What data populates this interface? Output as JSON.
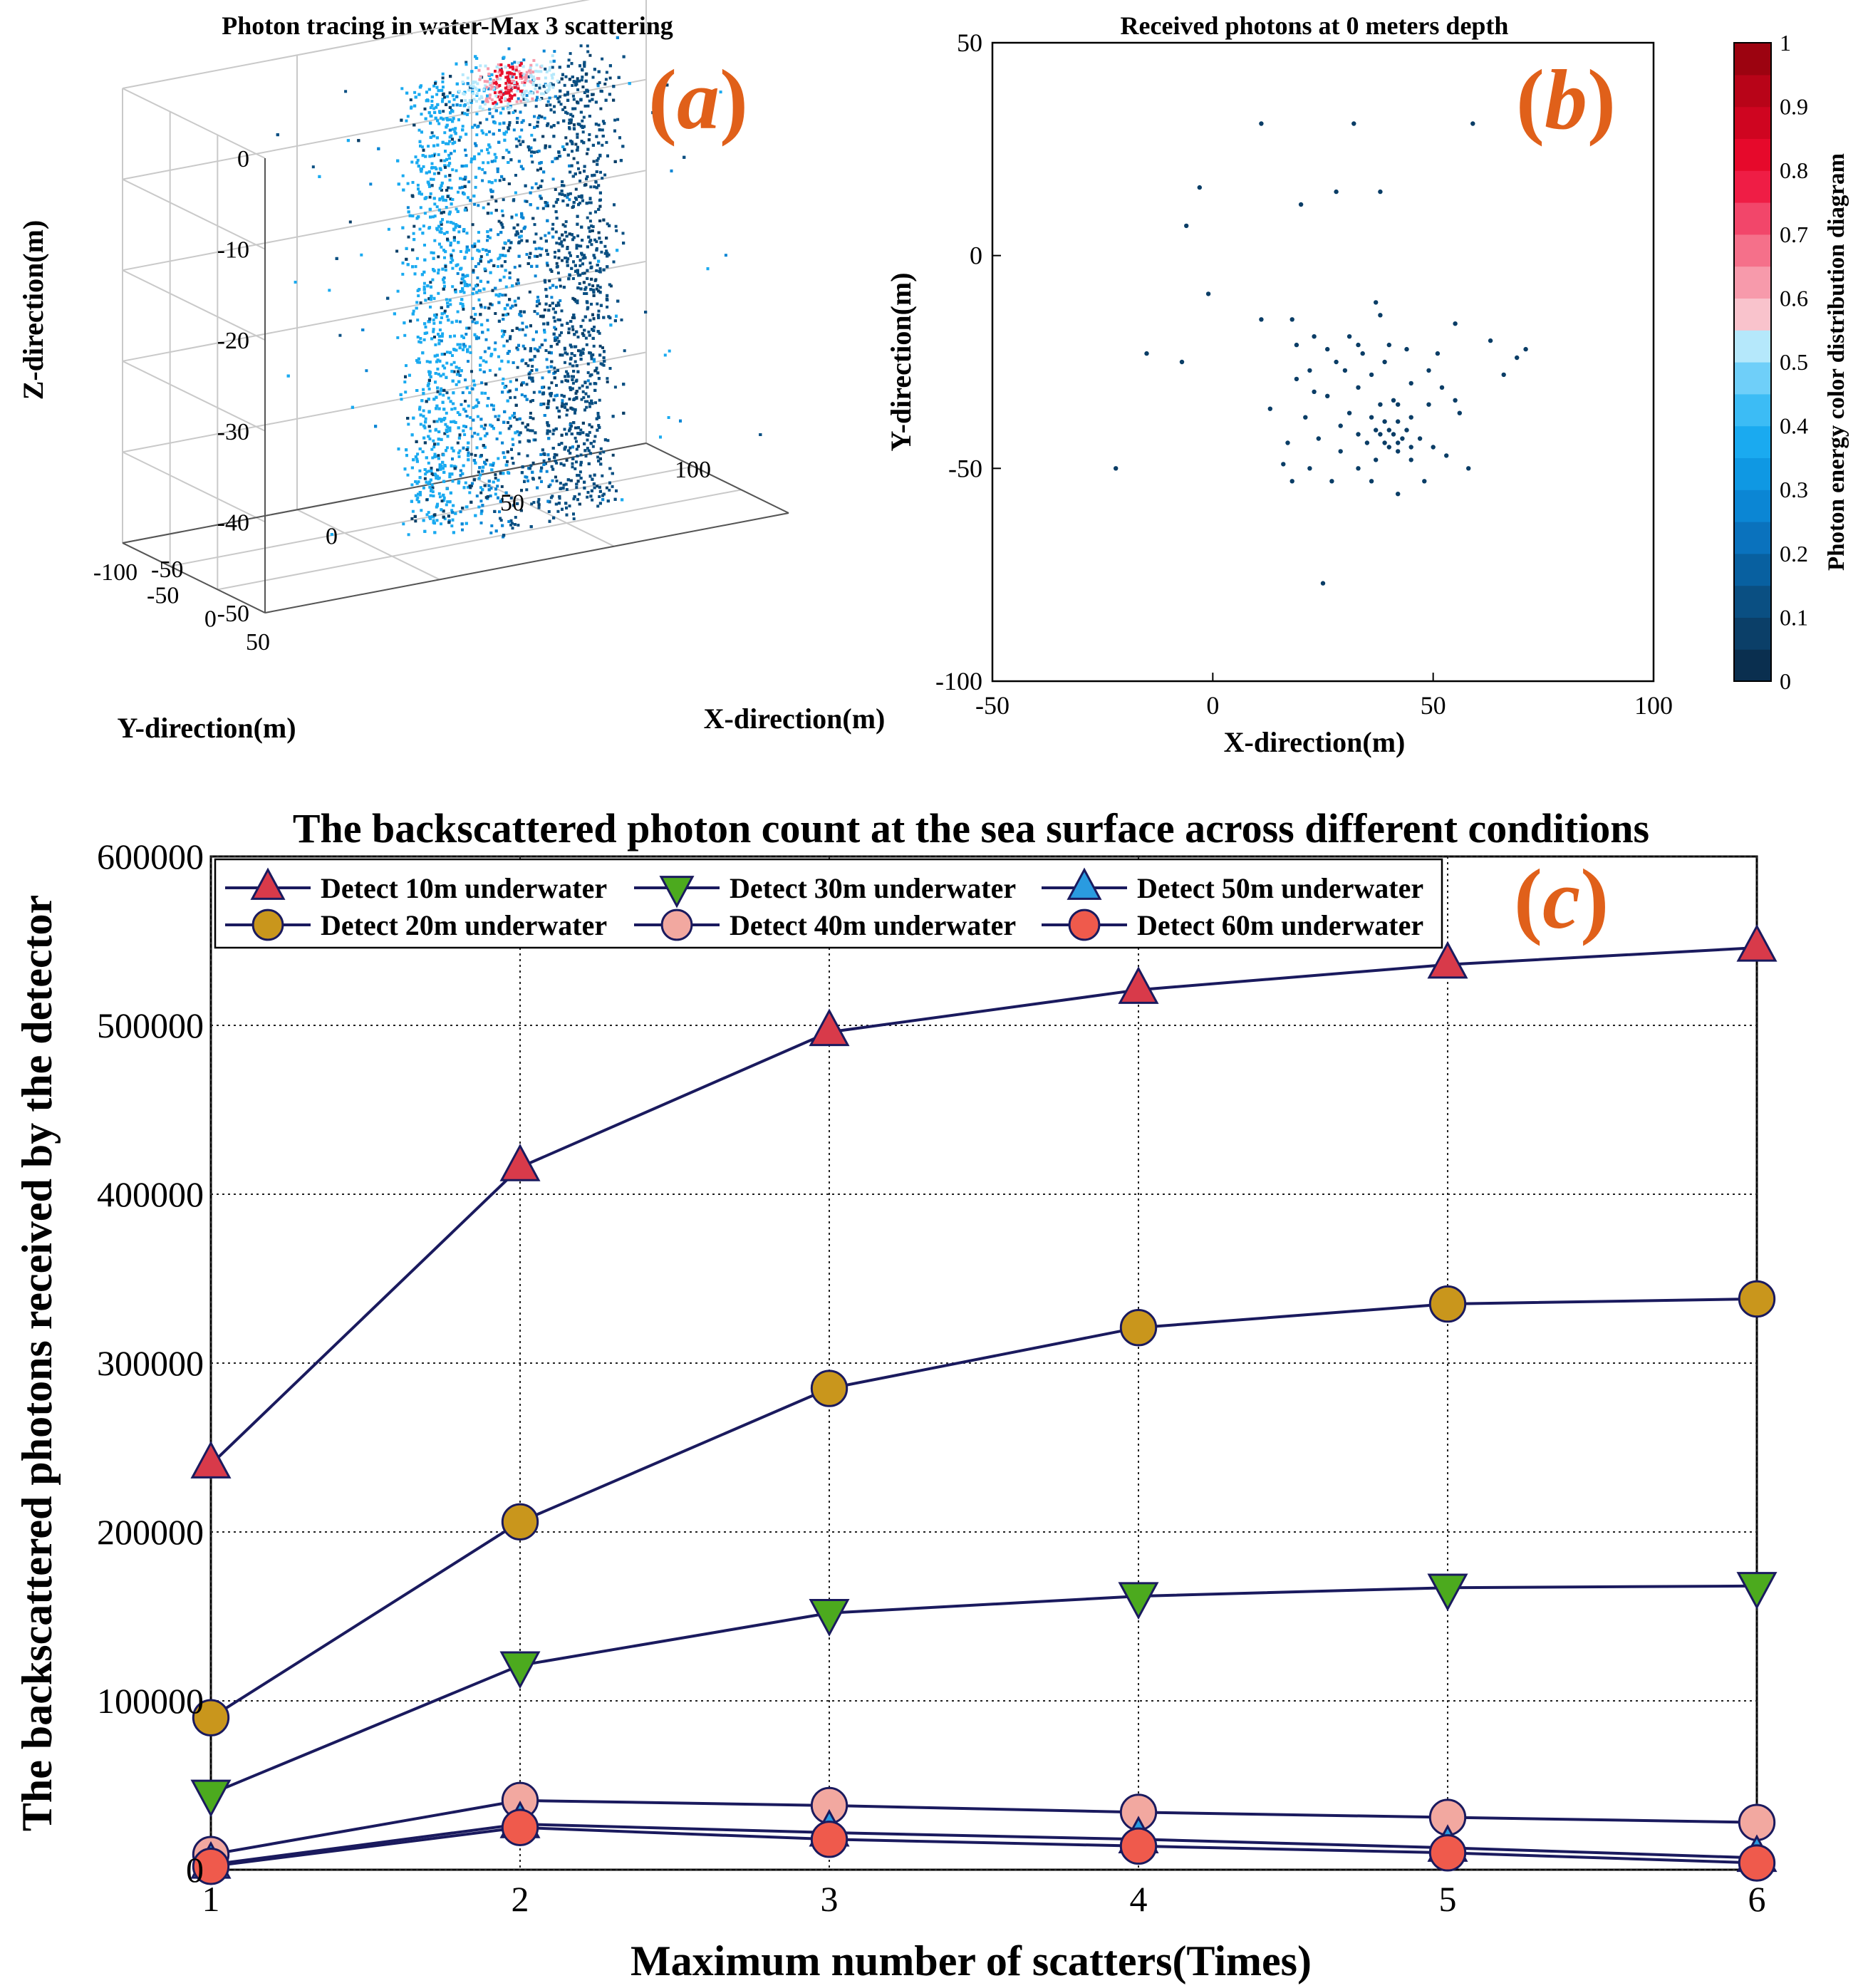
{
  "panels": {
    "a": {
      "label": "a"
    },
    "b": {
      "label": "b"
    },
    "c": {
      "label": "c"
    }
  },
  "colorbar": {
    "label": "Photon energy color distribution diagram",
    "ticks": [
      "0",
      "0.1",
      "0.2",
      "0.3",
      "0.4",
      "0.5",
      "0.6",
      "0.7",
      "0.8",
      "0.9",
      "1"
    ],
    "colors": [
      "#0a2f4f",
      "#0b3f68",
      "#0a4f82",
      "#0860a0",
      "#0a72bd",
      "#0b86d4",
      "#0f98e3",
      "#1aaaf0",
      "#3cbcf5",
      "#6fcff9",
      "#b5e8fb",
      "#f9c3cc",
      "#f79aab",
      "#f5708a",
      "#f2466a",
      "#ef1d45",
      "#e6092b",
      "#cf0520",
      "#b80418",
      "#9c0310"
    ]
  },
  "chart_data": [
    {
      "type": "scatter",
      "title": "Photon tracing in water-Max 3 scattering",
      "xlabel": "X-direction(m)",
      "ylabel": "Y-direction(m)",
      "zlabel": "Z-direction(m)",
      "xlim": [
        -50,
        100
      ],
      "ylim": [
        -100,
        50
      ],
      "zlim": [
        -50,
        0
      ],
      "x_ticks": [
        "-50",
        "0",
        "50",
        "100"
      ],
      "y_ticks": [
        "-100",
        "-50",
        "0",
        "50"
      ],
      "z_ticks": [
        "-50",
        "-40",
        "-30",
        "-20",
        "-10",
        "0"
      ],
      "grid": true,
      "point_color": "#1b8fd8",
      "core_color": "#0b4a78",
      "hot_color": "#e8102c"
    },
    {
      "type": "scatter",
      "title": "Received photons at 0 meters depth",
      "xlabel": "X-direction(m)",
      "ylabel": "Y-direction(m)",
      "xlim": [
        -50,
        100
      ],
      "ylim": [
        -100,
        50
      ],
      "x_ticks": [
        "-50",
        "0",
        "50",
        "100"
      ],
      "y_ticks": [
        "-100",
        "-50",
        "0",
        "50"
      ],
      "grid": false,
      "point_color": "#0a3d66",
      "points": [
        [
          11,
          31
        ],
        [
          32,
          31
        ],
        [
          59,
          31
        ],
        [
          -3,
          16
        ],
        [
          28,
          15
        ],
        [
          38,
          15
        ],
        [
          20,
          12
        ],
        [
          -6,
          7
        ],
        [
          -1,
          -9
        ],
        [
          37,
          -11
        ],
        [
          11,
          -15
        ],
        [
          18,
          -15
        ],
        [
          38,
          -14
        ],
        [
          55,
          -16
        ],
        [
          23,
          -19
        ],
        [
          31,
          -19
        ],
        [
          19,
          -21
        ],
        [
          33,
          -21
        ],
        [
          40,
          -21
        ],
        [
          63,
          -20
        ],
        [
          26,
          -22
        ],
        [
          -15,
          -23
        ],
        [
          34,
          -23
        ],
        [
          44,
          -22
        ],
        [
          51,
          -23
        ],
        [
          71,
          -22
        ],
        [
          28,
          -25
        ],
        [
          39,
          -25
        ],
        [
          -7,
          -25
        ],
        [
          69,
          -24
        ],
        [
          22,
          -27
        ],
        [
          30,
          -27
        ],
        [
          49,
          -27
        ],
        [
          36,
          -28
        ],
        [
          19,
          -29
        ],
        [
          66,
          -28
        ],
        [
          45,
          -30
        ],
        [
          33,
          -31
        ],
        [
          52,
          -31
        ],
        [
          23,
          -32
        ],
        [
          26,
          -33
        ],
        [
          41,
          -34
        ],
        [
          55,
          -34
        ],
        [
          38,
          -35
        ],
        [
          42,
          -35
        ],
        [
          13,
          -36
        ],
        [
          49,
          -35
        ],
        [
          31,
          -37
        ],
        [
          56,
          -37
        ],
        [
          21,
          -38
        ],
        [
          36,
          -38
        ],
        [
          45,
          -38
        ],
        [
          39,
          -39
        ],
        [
          42,
          -39
        ],
        [
          29,
          -40
        ],
        [
          37,
          -41
        ],
        [
          40,
          -41
        ],
        [
          44,
          -41
        ],
        [
          33,
          -42
        ],
        [
          38,
          -42
        ],
        [
          41,
          -42
        ],
        [
          43,
          -43
        ],
        [
          47,
          -43
        ],
        [
          39,
          -44
        ],
        [
          42,
          -44
        ],
        [
          24,
          -43
        ],
        [
          17,
          -44
        ],
        [
          35,
          -44
        ],
        [
          40,
          -45
        ],
        [
          45,
          -45
        ],
        [
          50,
          -45
        ],
        [
          29,
          -46
        ],
        [
          42,
          -46
        ],
        [
          53,
          -47
        ],
        [
          37,
          -48
        ],
        [
          45,
          -48
        ],
        [
          16,
          -49
        ],
        [
          22,
          -50
        ],
        [
          33,
          -50
        ],
        [
          58,
          -50
        ],
        [
          -22,
          -50
        ],
        [
          18,
          -53
        ],
        [
          27,
          -53
        ],
        [
          36,
          -53
        ],
        [
          48,
          -53
        ],
        [
          42,
          -56
        ],
        [
          25,
          -77
        ]
      ]
    },
    {
      "type": "line",
      "title": "The backscattered photon count at the sea surface across different conditions",
      "xlabel": "Maximum number of scatters(Times)",
      "ylabel": "The backscattered photons received by the detector",
      "x": [
        1,
        2,
        3,
        4,
        5,
        6
      ],
      "xlim": [
        1,
        6
      ],
      "ylim": [
        0,
        600000
      ],
      "x_ticks": [
        "1",
        "2",
        "3",
        "4",
        "5",
        "6"
      ],
      "y_ticks": [
        "0",
        "100000",
        "200000",
        "300000",
        "400000",
        "500000",
        "600000"
      ],
      "grid": true,
      "legend_position": "top",
      "series": [
        {
          "name": "Detect 10m underwater",
          "marker": "triangle-up",
          "color": "#d83a4a",
          "values": [
            240000,
            416000,
            496000,
            521000,
            536000,
            546000
          ]
        },
        {
          "name": "Detect 20m underwater",
          "marker": "circle",
          "color": "#c9961c",
          "values": [
            90000,
            206000,
            285000,
            321000,
            335000,
            338000
          ]
        },
        {
          "name": "Detect 30m underwater",
          "marker": "triangle-down",
          "color": "#4caa1e",
          "values": [
            45000,
            121000,
            152000,
            162000,
            167000,
            168000
          ]
        },
        {
          "name": "Detect 40m underwater",
          "marker": "circle",
          "color": "#f2a8a0",
          "values": [
            9000,
            41000,
            38000,
            34000,
            31000,
            28000
          ]
        },
        {
          "name": "Detect 50m underwater",
          "marker": "triangle-up",
          "color": "#2a9be0",
          "values": [
            3000,
            27000,
            22000,
            18000,
            13000,
            7000
          ]
        },
        {
          "name": "Detect 60m underwater",
          "marker": "circle",
          "color": "#ef5a4c",
          "values": [
            2000,
            25000,
            18000,
            14000,
            10000,
            4000
          ]
        }
      ]
    }
  ]
}
